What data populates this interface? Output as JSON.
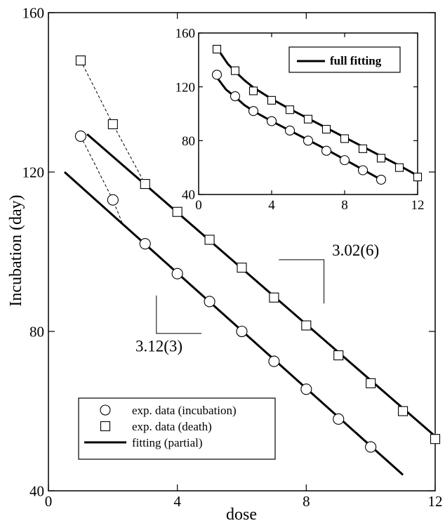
{
  "chart_data": [
    {
      "type": "scatter",
      "role": "main",
      "xlabel": "dose",
      "ylabel": "Incubation (day)",
      "xlim": [
        0,
        12
      ],
      "ylim": [
        40,
        160
      ],
      "xticks": [
        "0",
        "4",
        "8",
        "12"
      ],
      "yticks": [
        "40",
        "80",
        "120",
        "160"
      ],
      "xtick_values": [
        0,
        4,
        8,
        12
      ],
      "ytick_values": [
        40,
        80,
        120,
        160
      ],
      "legend": {
        "placement": "bottom-left",
        "entries": [
          {
            "label": "exp. data (incubation)",
            "marker": "circle"
          },
          {
            "label": "exp. data (death)",
            "marker": "square"
          },
          {
            "label": "fitting (partial)",
            "marker": "line"
          }
        ]
      },
      "series": [
        {
          "name": "exp. data (incubation)",
          "marker": "circle",
          "x": [
            1,
            2,
            3,
            4,
            5,
            6,
            7,
            8,
            9,
            10
          ],
          "y": [
            129,
            113,
            102,
            94.5,
            87.5,
            80,
            72.5,
            65.5,
            58,
            51
          ]
        },
        {
          "name": "exp. data (death)",
          "marker": "square",
          "x": [
            1,
            2,
            3,
            4,
            5,
            6,
            7,
            8,
            9,
            10,
            11,
            12
          ],
          "y": [
            148,
            132,
            117,
            110,
            103,
            96,
            88.5,
            81.5,
            74,
            67,
            60,
            53
          ]
        },
        {
          "name": "fitting (partial)",
          "style": "line",
          "x": [
            0.5,
            11
          ],
          "y": [
            120,
            44
          ]
        },
        {
          "name": "fitting (partial)",
          "style": "line",
          "x": [
            1.2,
            12.1
          ],
          "y": [
            129.5,
            53
          ]
        }
      ],
      "dashed_connectors": [
        {
          "x": [
            1,
            2,
            2.3
          ],
          "y": [
            129,
            113,
            107
          ]
        },
        {
          "x": [
            1,
            2,
            3
          ],
          "y": [
            148,
            132,
            117
          ]
        }
      ],
      "annotations": [
        {
          "text": "3.12(3)",
          "slope_bracket": {
            "x": [
              3.35,
              3.35,
              4.75
            ],
            "y": [
              89,
              79.5,
              79.5
            ]
          },
          "label_at": [
            2.7,
            75
          ]
        },
        {
          "text": "3.02(6)",
          "slope_bracket": {
            "x": [
              7.15,
              8.55,
              8.55
            ],
            "y": [
              98,
              98,
              87
            ]
          },
          "label_at": [
            8.8,
            99
          ]
        }
      ]
    },
    {
      "type": "scatter",
      "role": "inset",
      "xlim": [
        0,
        12
      ],
      "ylim": [
        40,
        160
      ],
      "xticks": [
        "0",
        "4",
        "8",
        "12"
      ],
      "yticks": [
        "40",
        "80",
        "120",
        "160"
      ],
      "xtick_values": [
        0,
        4,
        8,
        12
      ],
      "ytick_values": [
        40,
        80,
        120,
        160
      ],
      "legend": {
        "placement": "top-right",
        "entries": [
          {
            "label": "full fitting",
            "marker": "line"
          }
        ]
      },
      "series": [
        {
          "marker": "circle",
          "x": [
            1,
            2,
            3,
            4,
            5,
            6,
            7,
            8,
            9,
            10
          ],
          "y": [
            129,
            113,
            102,
            94.5,
            87.5,
            80,
            72.5,
            65.5,
            58,
            51
          ]
        },
        {
          "marker": "square",
          "x": [
            1,
            2,
            3,
            4,
            5,
            6,
            7,
            8,
            9,
            10,
            11,
            12
          ],
          "y": [
            148,
            132,
            117,
            110,
            103,
            96,
            88.5,
            81.5,
            74,
            67,
            60,
            53
          ]
        },
        {
          "name": "full fitting",
          "style": "line",
          "x": [
            1,
            1.5,
            2,
            2.5,
            3,
            4,
            5,
            6,
            7,
            8,
            9,
            10
          ],
          "y": [
            127,
            118,
            112.5,
            106.5,
            102,
            94.5,
            87.5,
            80.5,
            73.5,
            66,
            58.5,
            51
          ]
        },
        {
          "name": "full fitting",
          "style": "line",
          "x": [
            1.2,
            1.6,
            2,
            2.5,
            3,
            4,
            5,
            6,
            7,
            8,
            9,
            10,
            11,
            12
          ],
          "y": [
            145,
            137,
            131.5,
            125,
            119.5,
            111,
            103.5,
            96.5,
            89.5,
            82.5,
            75.5,
            68.5,
            61.5,
            54
          ]
        }
      ]
    }
  ]
}
